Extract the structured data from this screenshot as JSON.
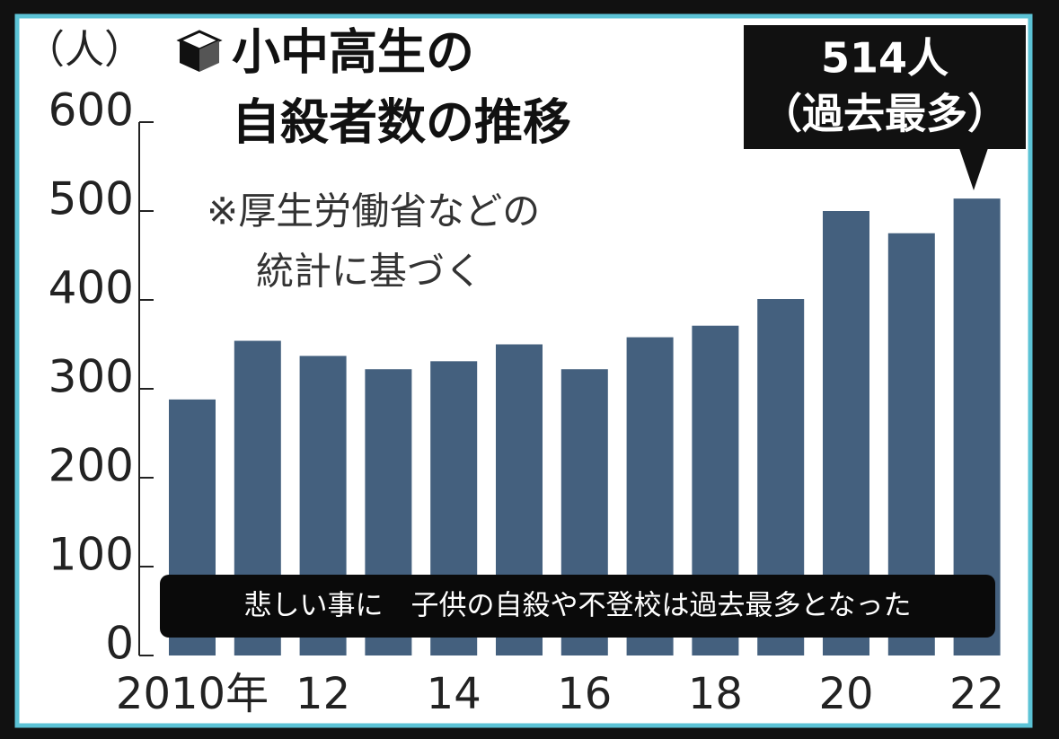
{
  "chart_data": {
    "type": "bar",
    "title_lines": [
      "小中高生の",
      "自殺者数の推移"
    ],
    "y_unit": "（人）",
    "note_lines": [
      "※厚生労働省などの",
      "統計に基づく"
    ],
    "annotation_lines": [
      "514人",
      "（過去最多）"
    ],
    "categories": [
      "2010年",
      null,
      "12",
      null,
      "14",
      null,
      "16",
      null,
      "18",
      null,
      "20",
      null,
      "22"
    ],
    "values": [
      288,
      354,
      337,
      322,
      331,
      350,
      322,
      358,
      371,
      401,
      500,
      475,
      514
    ],
    "color": "#44607e",
    "ylim": [
      0,
      600
    ],
    "yticks": [
      0,
      100,
      200,
      300,
      400,
      500,
      600
    ]
  },
  "caption": "悲しい事に　子供の自殺や不登校は過去最多となった"
}
